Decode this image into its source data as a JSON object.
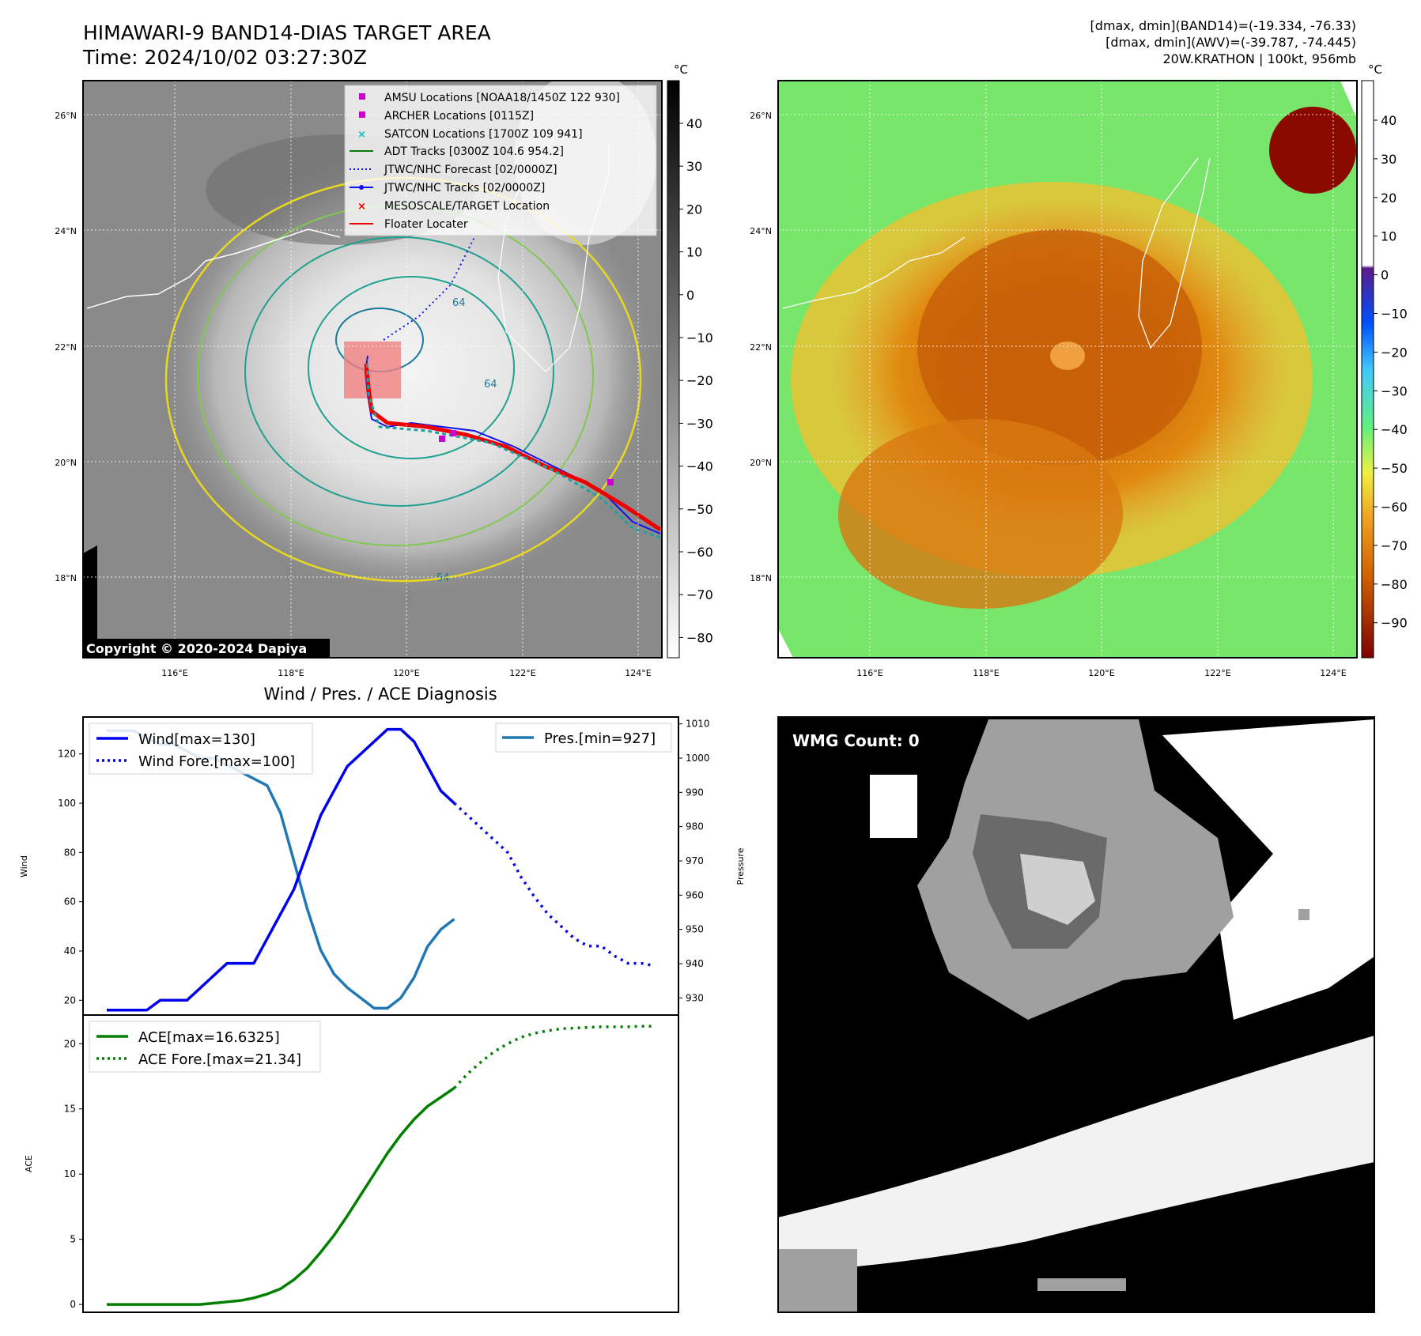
{
  "header": {
    "title_line1": "HIMAWARI-9 BAND14-DIAS TARGET AREA",
    "title_line2": "Time: 2024/10/02 03:27:30Z",
    "info_line1": "[dmax, dmin](BAND14)=(-19.334, -76.33)",
    "info_line2": "[dmax, dmin](AWV)=(-39.787, -74.445)",
    "info_line3": "20W.KRATHON | 100kt, 956mb"
  },
  "map_axes": {
    "lat_labels": [
      "26°N",
      "24°N",
      "22°N",
      "20°N",
      "18°N"
    ],
    "lon_labels": [
      "116°E",
      "118°E",
      "120°E",
      "122°E",
      "124°E"
    ]
  },
  "ir_colorbar": {
    "unit": "°C",
    "ticks": [
      "40",
      "30",
      "20",
      "10",
      "0",
      "−10",
      "−20",
      "−30",
      "−40",
      "−50",
      "−60",
      "−70",
      "−80"
    ]
  },
  "awv_colorbar": {
    "unit": "°C",
    "ticks": [
      "40",
      "30",
      "20",
      "10",
      "0",
      "−10",
      "−20",
      "−30",
      "−40",
      "−50",
      "−60",
      "−70",
      "−80",
      "−90"
    ]
  },
  "legend": {
    "items": [
      {
        "label": "AMSU Locations [NOAA18/1450Z 122 930]",
        "color": "#cc00cc",
        "marker": "square"
      },
      {
        "label": "ARCHER Locations [0115Z]",
        "color": "#cc00cc",
        "marker": "square"
      },
      {
        "label": "SATCON Locations [1700Z 109 941]",
        "color": "#11bbbb",
        "marker": "x"
      },
      {
        "label": "ADT Tracks [0300Z 104.6 954.2]",
        "color": "#0a7a0a",
        "marker": "line"
      },
      {
        "label": "JTWC/NHC Forecast [02/0000Z]",
        "color": "#1111ee",
        "marker": "dotted"
      },
      {
        "label": "JTWC/NHC Tracks [02/0000Z]",
        "color": "#1111ee",
        "marker": "line-dot"
      },
      {
        "label": "MESOSCALE/TARGET Location",
        "color": "#ee0000",
        "marker": "x"
      },
      {
        "label": "Floater Locater",
        "color": "#ee0000",
        "marker": "line"
      }
    ]
  },
  "copyright": "Copyright © 2020-2024 Dapiya",
  "contour_labels": [
    "64",
    "64",
    "54"
  ],
  "wmg": {
    "label": "WMG Count: 0"
  },
  "colors": {
    "wind": "#0000ee",
    "pressure": "#1f77b4",
    "ace": "#007f00"
  },
  "chart_data": [
    {
      "type": "line",
      "title": "Wind / Pres. / ACE Diagnosis",
      "ylabel": "Wind",
      "y2label": "Pressure",
      "ylim": [
        14,
        135
      ],
      "y2lim": [
        925,
        1012
      ],
      "yticks": [
        "20",
        "40",
        "60",
        "80",
        "100",
        "120"
      ],
      "y2ticks": [
        "930",
        "940",
        "950",
        "960",
        "970",
        "980",
        "990",
        "1000",
        "1010"
      ],
      "legend_left": [
        "Wind[max=130]",
        "Wind Fore.[max=100]"
      ],
      "legend_right": [
        "Pres.[min=927]"
      ],
      "series": [
        {
          "name": "Wind[max=130]",
          "axis": "left",
          "style": "solid",
          "x": [
            0,
            1,
            2,
            3,
            4,
            5,
            6,
            7,
            8,
            9,
            10,
            11,
            12,
            13,
            14,
            15,
            16,
            17,
            18,
            19,
            20,
            21,
            22,
            23,
            24,
            25,
            26,
            27,
            28
          ],
          "y": [
            16,
            16,
            16,
            16,
            20,
            20,
            20,
            25,
            30,
            35,
            35,
            35,
            45,
            55,
            65,
            80,
            95,
            105,
            115,
            120,
            125,
            130,
            130,
            125,
            115,
            105,
            100,
            null,
            null
          ]
        },
        {
          "name": "Wind Fore.[max=100]",
          "axis": "left",
          "style": "dotted",
          "x": [
            26,
            27,
            28,
            29,
            30,
            31,
            32,
            33,
            34,
            35,
            36,
            37,
            38,
            39,
            40,
            41
          ],
          "y": [
            100,
            95,
            90,
            85,
            80,
            70,
            62,
            55,
            50,
            45,
            42,
            42,
            38,
            35,
            35,
            34
          ]
        },
        {
          "name": "Pres.[min=927]",
          "axis": "right",
          "style": "solid",
          "x": [
            0,
            1,
            2,
            3,
            4,
            5,
            6,
            7,
            8,
            9,
            10,
            11,
            12,
            13,
            14,
            15,
            16,
            17,
            18,
            19,
            20,
            21,
            22,
            23,
            24,
            25,
            26
          ],
          "y": [
            1008,
            1008,
            1008,
            1006,
            1004,
            1004,
            1002,
            1000,
            1000,
            998,
            996,
            994,
            992,
            984,
            970,
            956,
            944,
            937,
            933,
            930,
            927,
            927,
            930,
            936,
            945,
            950,
            953
          ]
        }
      ]
    },
    {
      "type": "line",
      "ylabel": "ACE",
      "ylim": [
        -0.6,
        22.2
      ],
      "yticks": [
        "0",
        "5",
        "10",
        "15",
        "20"
      ],
      "legend": [
        "ACE[max=16.6325]",
        "ACE Fore.[max=21.34]"
      ],
      "series": [
        {
          "name": "ACE[max=16.6325]",
          "style": "solid",
          "x": [
            0,
            1,
            2,
            3,
            4,
            5,
            6,
            7,
            8,
            9,
            10,
            11,
            12,
            13,
            14,
            15,
            16,
            17,
            18,
            19,
            20,
            21,
            22,
            23,
            24,
            25,
            26
          ],
          "y": [
            0,
            0,
            0,
            0,
            0,
            0,
            0,
            0,
            0.1,
            0.2,
            0.3,
            0.5,
            0.8,
            1.2,
            1.9,
            2.8,
            4.0,
            5.3,
            6.8,
            8.4,
            10.0,
            11.6,
            13.0,
            14.2,
            15.2,
            15.9,
            16.6
          ]
        },
        {
          "name": "ACE Fore.[max=21.34]",
          "style": "dotted",
          "x": [
            26,
            27,
            28,
            29,
            30,
            31,
            32,
            33,
            34,
            35,
            36,
            37,
            38,
            39,
            40,
            41
          ],
          "y": [
            16.6,
            17.7,
            18.6,
            19.4,
            20.0,
            20.5,
            20.8,
            21.0,
            21.15,
            21.2,
            21.25,
            21.3,
            21.3,
            21.3,
            21.34,
            21.34
          ]
        }
      ]
    }
  ]
}
